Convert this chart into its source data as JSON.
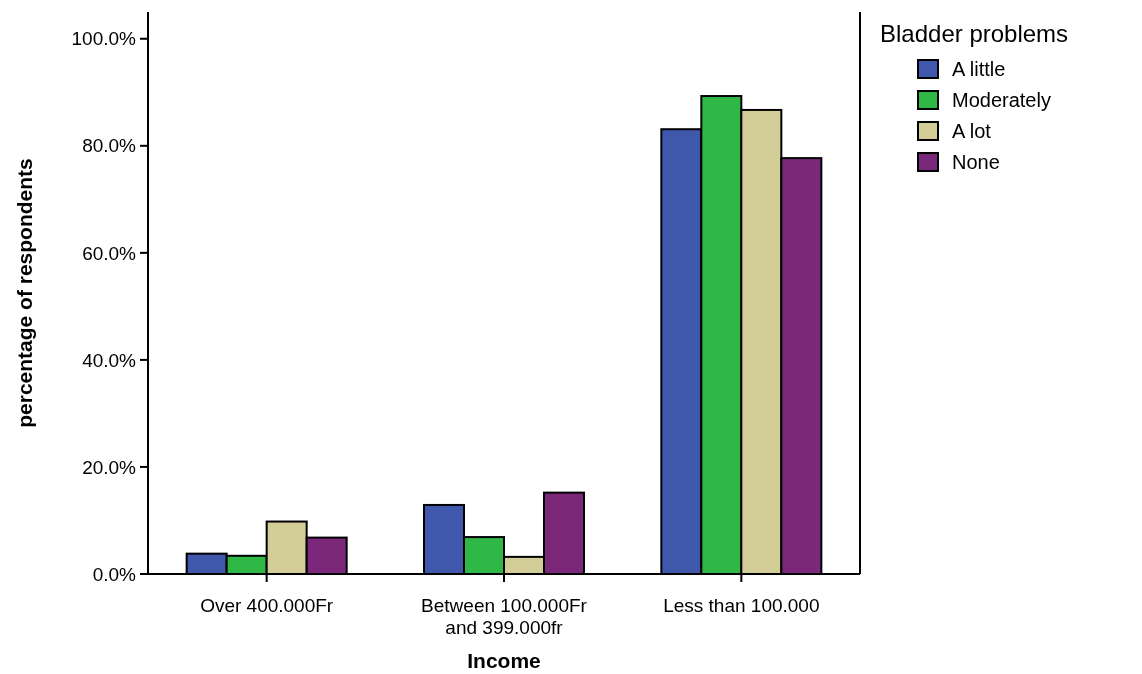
{
  "chart_data": {
    "type": "bar",
    "xlabel": "Income",
    "ylabel": "percentage of respondents",
    "legend_title": "Bladder problems",
    "legend": "top right",
    "grid": false,
    "categories": [
      "Over 400.000Fr",
      "Between 100.000Fr and 399.000fr",
      "Less than 100.000"
    ],
    "ylim": [
      0,
      105
    ],
    "yticks": [
      {
        "value": 0,
        "label": "0.0%"
      },
      {
        "value": 20,
        "label": "20.0%"
      },
      {
        "value": 40,
        "label": "40.0%"
      },
      {
        "value": 60,
        "label": "60.0%"
      },
      {
        "value": 80,
        "label": "80.0%"
      },
      {
        "value": 100,
        "label": "100.0%"
      }
    ],
    "series": [
      {
        "name": "A little",
        "color": "#3f58ab",
        "values": [
          3.8,
          12.9,
          83.1
        ]
      },
      {
        "name": "Moderately",
        "color": "#2fb846",
        "values": [
          3.4,
          6.9,
          89.3
        ]
      },
      {
        "name": "A lot",
        "color": "#d3ce97",
        "values": [
          9.8,
          3.2,
          86.7
        ]
      },
      {
        "name": "None",
        "color": "#7b287b",
        "values": [
          6.8,
          15.2,
          77.7
        ]
      }
    ]
  }
}
